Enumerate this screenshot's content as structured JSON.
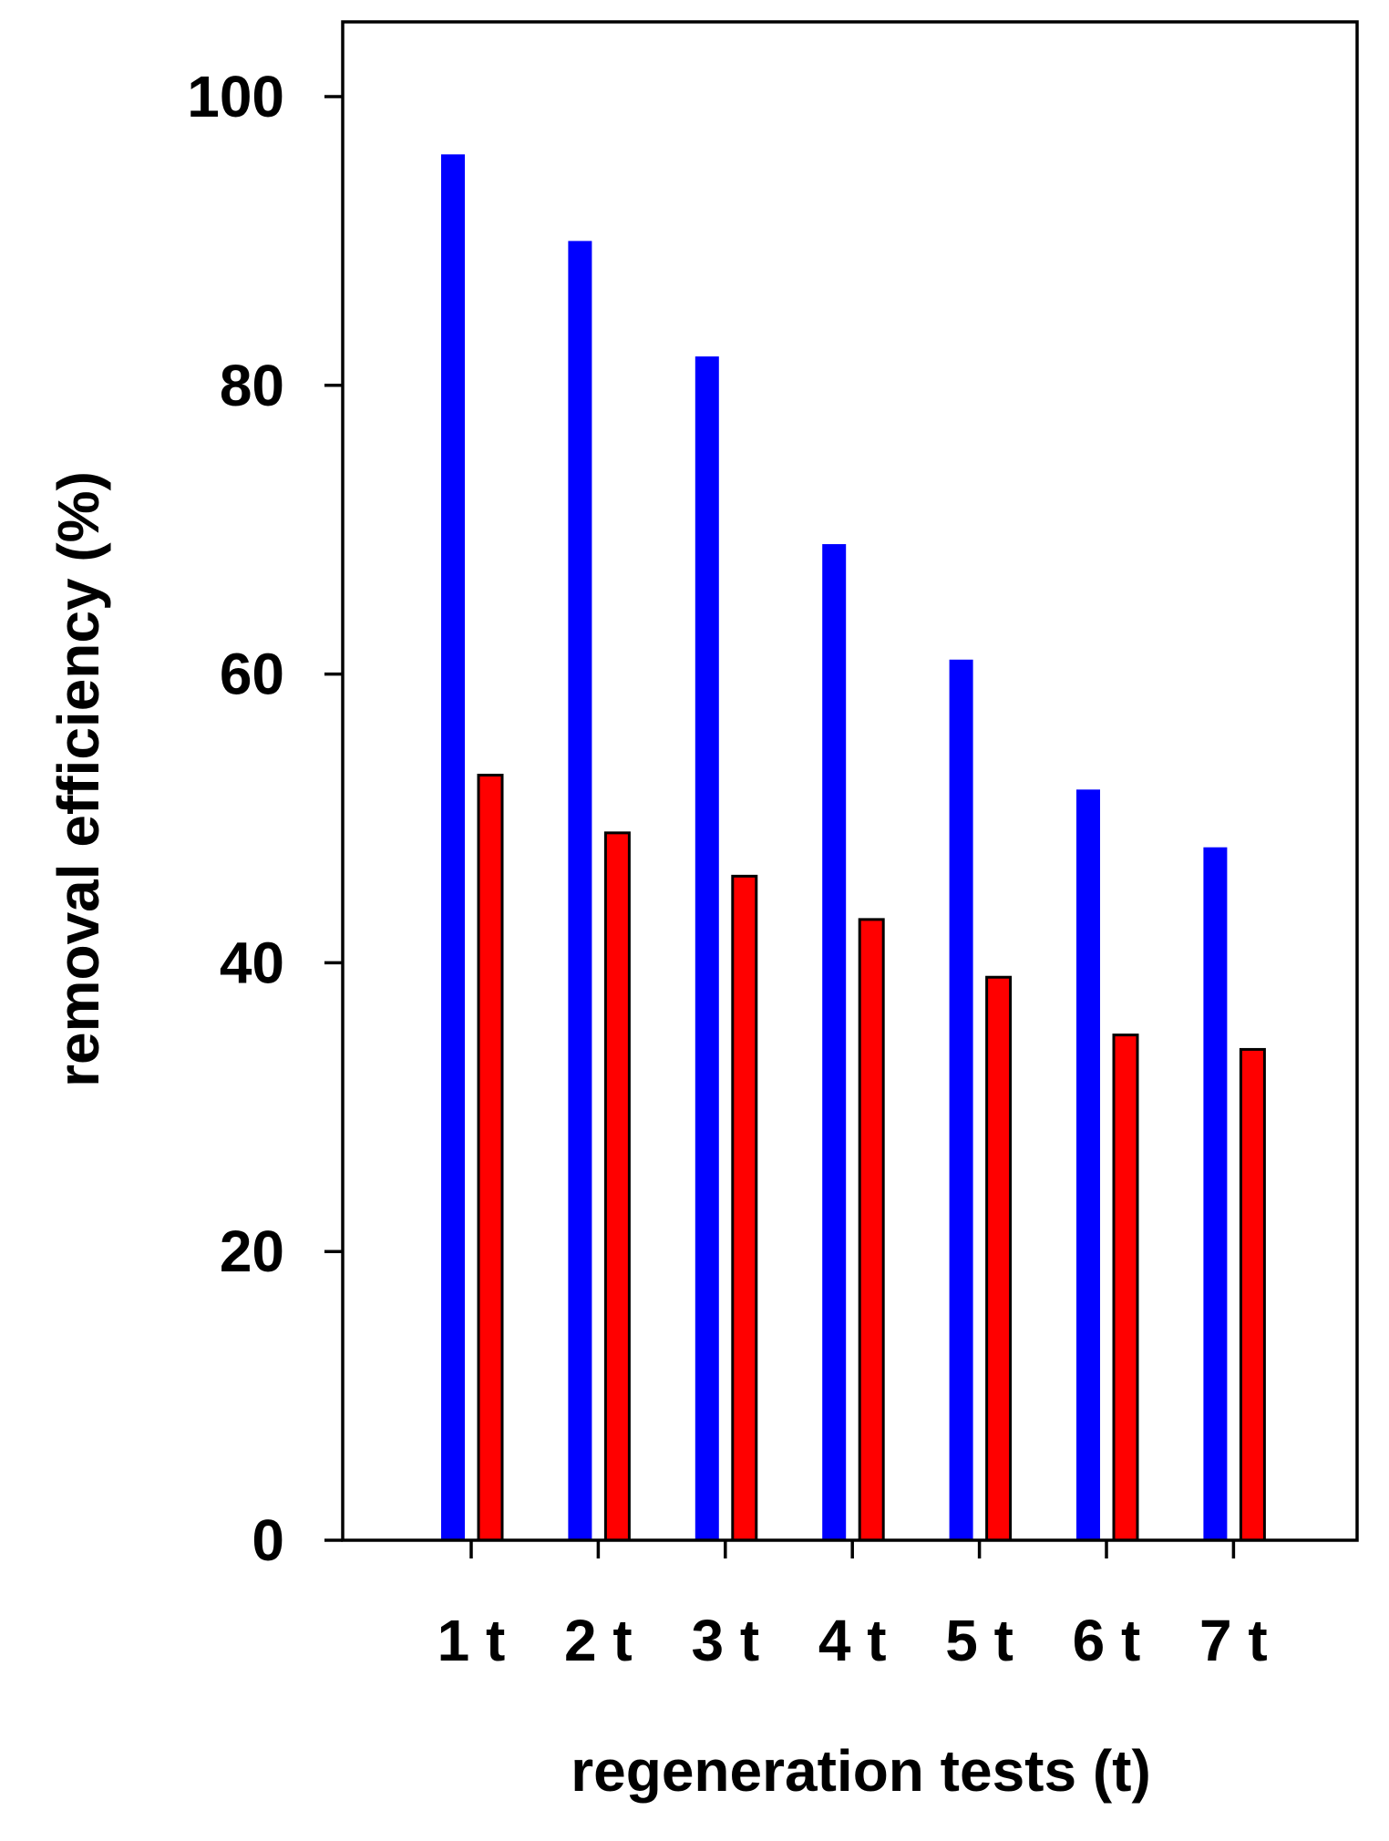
{
  "chart_data": {
    "type": "bar",
    "title": "",
    "xlabel": "regeneration tests (t)",
    "ylabel": "removal efficiency (%)",
    "categories": [
      "1 t",
      "2 t",
      "3 t",
      "4 t",
      "5 t",
      "6 t",
      "7 t"
    ],
    "series": [
      {
        "color": "#0000ff",
        "values": [
          96,
          90,
          82,
          69,
          61,
          52,
          48
        ]
      },
      {
        "color": "#ff0000",
        "values": [
          53,
          49,
          46,
          43,
          39,
          35,
          34
        ]
      }
    ],
    "ylim": [
      0,
      105
    ],
    "yticks": [
      0,
      20,
      40,
      60,
      80,
      100
    ],
    "grid": false,
    "legend": "none"
  }
}
